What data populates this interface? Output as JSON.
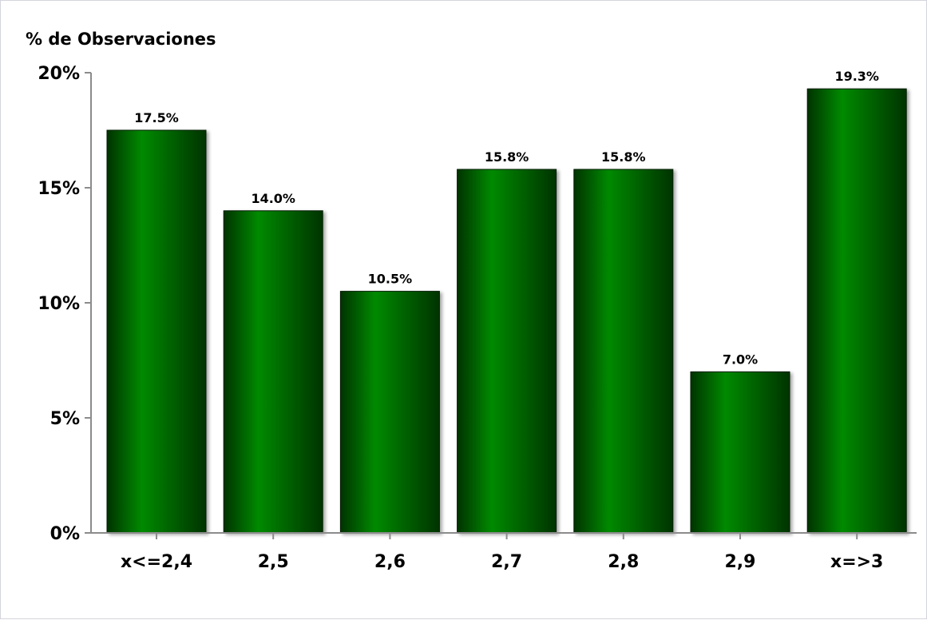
{
  "chart_data": {
    "type": "bar",
    "title": "",
    "xlabel": "",
    "ylabel": "% de Observaciones",
    "categories": [
      "x<=2,4",
      "2,5",
      "2,6",
      "2,7",
      "2,8",
      "2,9",
      "x=>3"
    ],
    "values": [
      17.5,
      14.0,
      10.5,
      15.8,
      15.8,
      7.0,
      19.3
    ],
    "data_labels": [
      "17.5%",
      "14.0%",
      "10.5%",
      "15.8%",
      "15.8%",
      "7.0%",
      "19.3%"
    ],
    "ylim": [
      0,
      20
    ],
    "yticks": [
      0,
      5,
      10,
      15,
      20
    ],
    "ytick_labels": [
      "0%",
      "5%",
      "10%",
      "15%",
      "20%"
    ],
    "grid": false,
    "legend": "none",
    "colors": {
      "bar_dark": "#003300",
      "bar_bright": "#008a00",
      "axis": "#8c8c8c"
    }
  }
}
